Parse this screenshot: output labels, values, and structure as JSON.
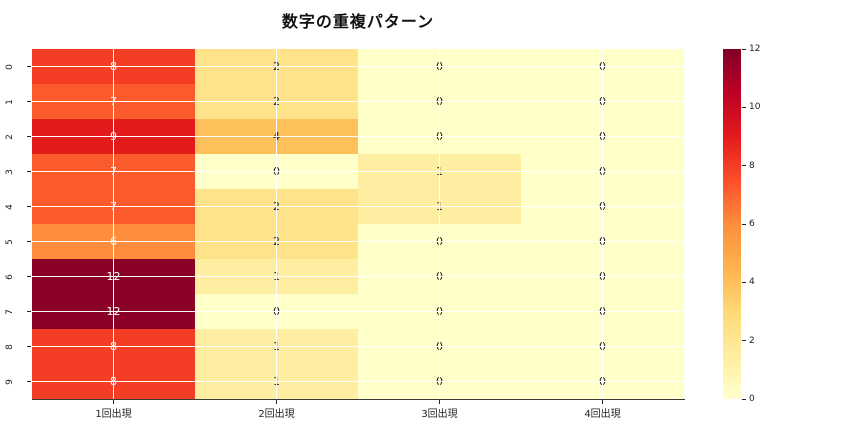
{
  "title": "数字の重複パターン",
  "chart_data": {
    "type": "heatmap",
    "title": "数字の重複パターン",
    "x_labels": [
      "1回出現",
      "2回出現",
      "3回出現",
      "4回出現"
    ],
    "y_labels": [
      "0",
      "1",
      "2",
      "3",
      "4",
      "5",
      "6",
      "7",
      "8",
      "9"
    ],
    "rows": [
      [
        8,
        2,
        0,
        0
      ],
      [
        7,
        2,
        0,
        0
      ],
      [
        9,
        4,
        0,
        0
      ],
      [
        7,
        0,
        1,
        0
      ],
      [
        7,
        2,
        1,
        0
      ],
      [
        6,
        2,
        0,
        0
      ],
      [
        12,
        1,
        0,
        0
      ],
      [
        12,
        0,
        0,
        0
      ],
      [
        8,
        1,
        0,
        0
      ],
      [
        8,
        1,
        0,
        0
      ]
    ],
    "vmin": 0,
    "vmax": 12,
    "colormap": "YlOrRd",
    "colorbar_ticks": [
      12,
      10,
      8,
      6,
      4,
      2,
      0
    ],
    "colormap_stops": [
      "#ffffcc",
      "#ffeda0",
      "#fed976",
      "#feb24c",
      "#fd8d3c",
      "#fc4e2a",
      "#e31a1c",
      "#bd0026",
      "#800026"
    ],
    "value_colors": {
      "0": "#ffffc9",
      "1": "#fdeea1",
      "2": "#fee38b",
      "4": "#fdc05a",
      "6": "#fd8d3c",
      "7": "#fb5a2c",
      "8": "#f33d25",
      "9": "#e31a1c",
      "12": "#8a0326"
    },
    "annotation_light_color": "#ffffff",
    "annotation_dark_color": "#262626",
    "light_text_threshold": 6,
    "grid_color": "#ffffff",
    "legend_position": "right",
    "grid": "on"
  }
}
